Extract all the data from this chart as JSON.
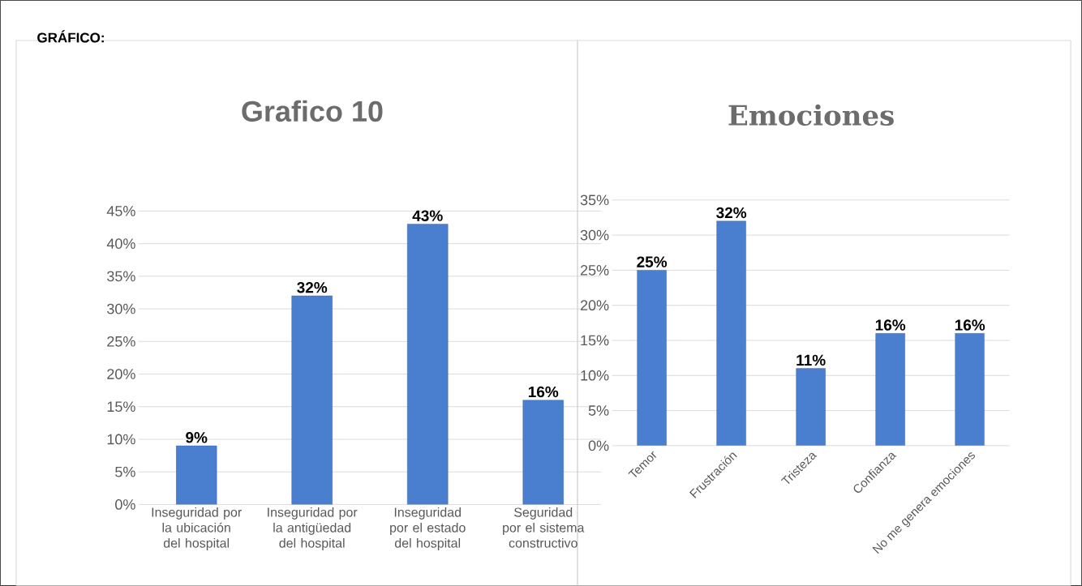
{
  "chart_data": [
    {
      "type": "bar",
      "title": "Grafico 10",
      "annotations": [
        "GRÁFICO:"
      ],
      "categories": [
        "Inseguridad por la ubicación del hospital",
        "Inseguridad por la antigüedad del hospital",
        "Inseguridad por el estado del hospital",
        "Seguridad por el sistema constructivo"
      ],
      "values": [
        9,
        32,
        43,
        16
      ],
      "value_labels": [
        "9%",
        "32%",
        "43%",
        "16%"
      ],
      "color": "#4a7fd0",
      "ylim": [
        0,
        45
      ],
      "yticks": [
        {
          "value": 0,
          "label": "0%"
        },
        {
          "value": 5,
          "label": "5%"
        },
        {
          "value": 10,
          "label": "10%"
        },
        {
          "value": 15,
          "label": "15%"
        },
        {
          "value": 20,
          "label": "20%"
        },
        {
          "value": 25,
          "label": "25%"
        },
        {
          "value": 30,
          "label": "30%"
        },
        {
          "value": 35,
          "label": "35%"
        },
        {
          "value": 40,
          "label": "40%"
        },
        {
          "value": 45,
          "label": "45%"
        }
      ],
      "grid": "y"
    },
    {
      "type": "bar",
      "title": "Emociones",
      "categories": [
        "Temor",
        "Frustración",
        "Tristeza",
        "Confianza",
        "No me genera emociones"
      ],
      "values": [
        25,
        32,
        11,
        16,
        16
      ],
      "value_labels": [
        "25%",
        "32%",
        "11%",
        "16%",
        "16%"
      ],
      "color": "#4a7fd0",
      "ylim": [
        0,
        35
      ],
      "yticks": [
        {
          "value": 0,
          "label": "0%"
        },
        {
          "value": 5,
          "label": "5%"
        },
        {
          "value": 10,
          "label": "10%"
        },
        {
          "value": 15,
          "label": "15%"
        },
        {
          "value": 20,
          "label": "20%"
        },
        {
          "value": 25,
          "label": "25%"
        },
        {
          "value": 30,
          "label": "30%"
        },
        {
          "value": 35,
          "label": "35%"
        }
      ],
      "grid": "y"
    }
  ]
}
